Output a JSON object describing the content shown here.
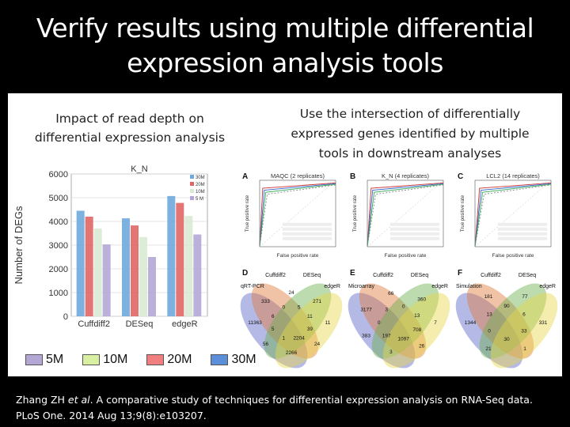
{
  "title": {
    "line1": "Verify results using multiple differential",
    "line2": "expression analysis tools"
  },
  "left_heading": {
    "line1": "Impact of read depth on",
    "line2": "differential expression analysis"
  },
  "right_heading": {
    "line1": "Use the intersection of differentially",
    "line2": "expressed genes identified by multiple",
    "line3": "tools in downstream analyses"
  },
  "chart_data": {
    "type": "bar",
    "title": "K_N",
    "ylabel": "Number of DEGs",
    "xlabel": "",
    "ylim": [
      0,
      6000
    ],
    "yticks": [
      0,
      1000,
      2000,
      3000,
      4000,
      5000,
      6000
    ],
    "categories": [
      "Cuffdiff2",
      "DESeq",
      "edgeR"
    ],
    "series": [
      {
        "name": "30M",
        "color": "#6fa8dc",
        "values": [
          4450,
          4130,
          5070
        ]
      },
      {
        "name": "20M",
        "color": "#e06666",
        "values": [
          4200,
          3830,
          4780
        ]
      },
      {
        "name": "10M",
        "color": "#d9ead3",
        "values": [
          3700,
          3340,
          4230
        ]
      },
      {
        "name": "5 M",
        "color": "#b4a7d6",
        "values": [
          3030,
          2500,
          3450
        ]
      }
    ],
    "inner_legend_placement": "top-right",
    "grid": true
  },
  "legend": [
    {
      "label": "5M",
      "color": "#b4a7d6"
    },
    {
      "label": "10M",
      "color": "#d9f0a3"
    },
    {
      "label": "20M",
      "color": "#f08080"
    },
    {
      "label": "30M",
      "color": "#5b8fd9"
    }
  ],
  "figure": {
    "panels": [
      {
        "letter": "A",
        "title": "MAQC (2 replicates)"
      },
      {
        "letter": "B",
        "title": "K_N (4 replicates)"
      },
      {
        "letter": "C",
        "title": "LCL2 (14 replicates)"
      }
    ],
    "xlabel": "False positive rate",
    "ylabel": "True positive rate",
    "venns": [
      {
        "letter": "D",
        "labels": [
          "qRT-PCR",
          "Cuffdiff2",
          "DESeq",
          "edgeR"
        ],
        "numbers": [
          "11",
          "39",
          "24",
          "2204",
          "2266",
          "1",
          "56",
          "5",
          "11363",
          "6",
          "333",
          "0",
          "24",
          "5",
          "271",
          "11"
        ]
      },
      {
        "letter": "E",
        "labels": [
          "Microarray",
          "Cuffdiff2",
          "DESeq",
          "edgeR"
        ],
        "numbers": [
          "7",
          "708",
          "26",
          "1097",
          "3",
          "197",
          "383",
          "0",
          "3177",
          "3",
          "66",
          "0",
          "360",
          "13"
        ]
      },
      {
        "letter": "F",
        "labels": [
          "Simulation",
          "Cuffdiff2",
          "DESeq",
          "edgeR"
        ],
        "numbers": [
          "331",
          "33",
          "1",
          "30",
          "21",
          "0",
          "1344",
          "13",
          "181",
          "90",
          "77",
          "6"
        ]
      }
    ]
  },
  "citation": {
    "authors": "Zhang ZH ",
    "etal": "et al",
    "rest": ". A comparative study of techniques for differential expression analysis on RNA-Seq data.",
    "line2": "PLoS One. 2014 Aug 13;9(8):e103207."
  }
}
